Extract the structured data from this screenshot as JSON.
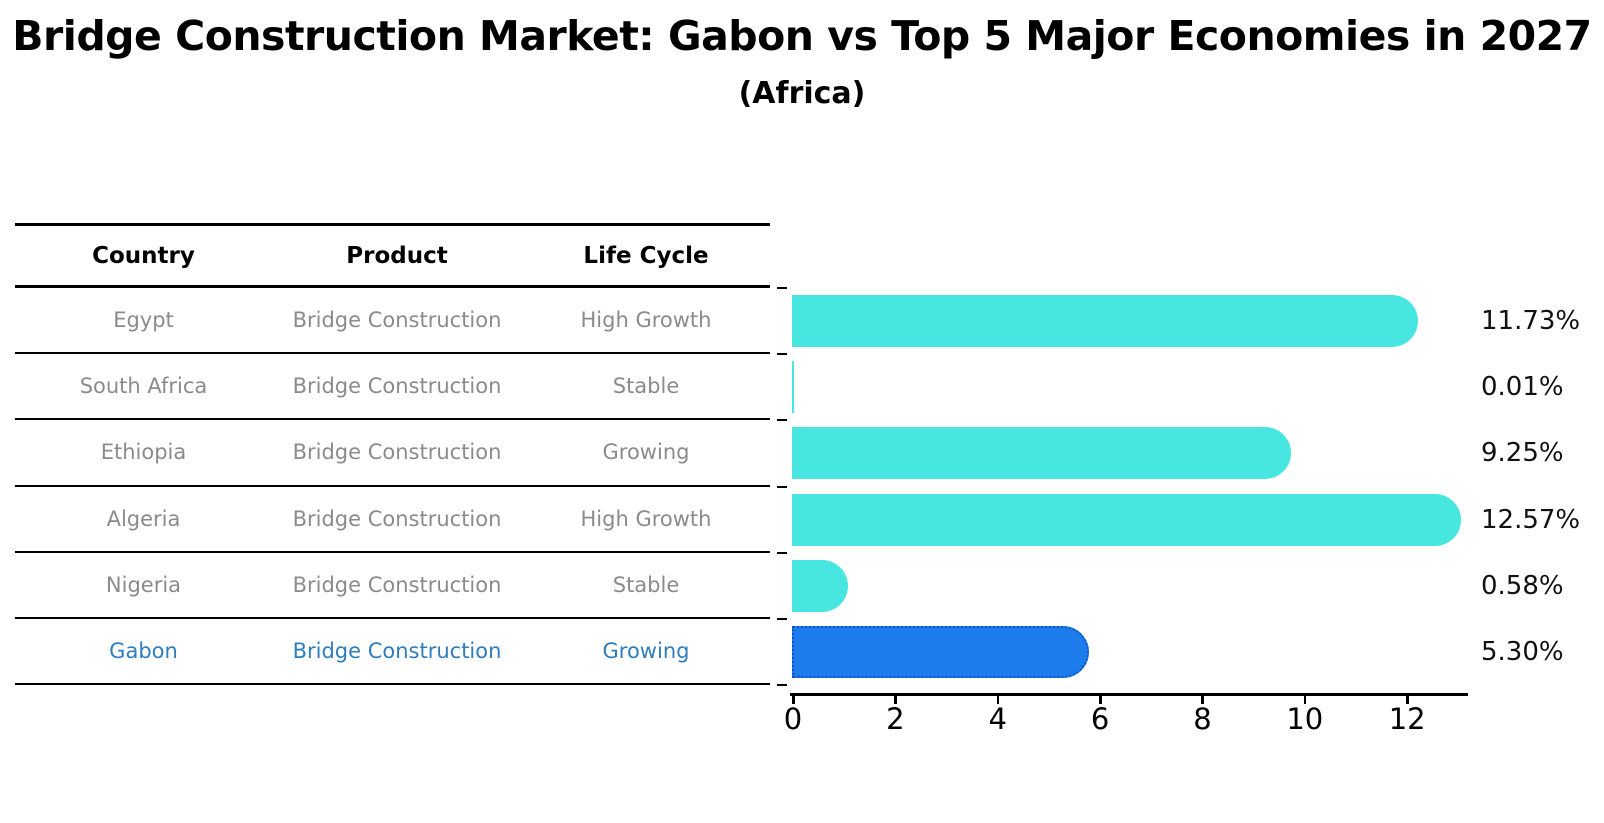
{
  "title": "Bridge Construction Market: Gabon vs Top 5 Major Economies in 2027",
  "subtitle": "(Africa)",
  "table": {
    "headers": [
      "Country",
      "Product",
      "Life Cycle"
    ],
    "rows": [
      {
        "country": "Egypt",
        "product": "Bridge Construction",
        "life_cycle": "High Growth",
        "highlight": false
      },
      {
        "country": "South Africa",
        "product": "Bridge Construction",
        "life_cycle": "Stable",
        "highlight": false
      },
      {
        "country": "Ethiopia",
        "product": "Bridge Construction",
        "life_cycle": "Growing",
        "highlight": false
      },
      {
        "country": "Algeria",
        "product": "Bridge Construction",
        "life_cycle": "High Growth",
        "highlight": false
      },
      {
        "country": "Nigeria",
        "product": "Bridge Construction",
        "life_cycle": "Stable",
        "highlight": false
      },
      {
        "country": "Gabon",
        "product": "Bridge Construction",
        "life_cycle": "Growing",
        "highlight": true
      }
    ]
  },
  "chart_data": {
    "type": "bar",
    "orientation": "horizontal",
    "title": "Bridge Construction Market: Gabon vs Top 5 Major Economies in 2027 (Africa)",
    "categories": [
      "Egypt",
      "South Africa",
      "Ethiopia",
      "Algeria",
      "Nigeria",
      "Gabon"
    ],
    "values": [
      11.73,
      0.01,
      9.25,
      12.57,
      0.58,
      5.3
    ],
    "value_labels": [
      "11.73%",
      "0.01%",
      "9.25%",
      "12.57%",
      "0.58%",
      "5.30%"
    ],
    "xlabel": "",
    "ylabel": "",
    "xlim": [
      0,
      13.15
    ],
    "xticks": [
      0,
      2,
      4,
      6,
      8,
      10,
      12
    ],
    "grid": false,
    "legend_position": "none",
    "highlight_index": 5,
    "bar_color": "#47E6E0",
    "highlight_bar_color": "#1C7CEC",
    "highlight_border_color": "#0E56C8"
  },
  "colors": {
    "background": "#FFFFFF",
    "header_text": "#000000",
    "row_text": "#8B8B8B",
    "highlight_text": "#2E7EBD",
    "axis": "#000000",
    "value_label_text": "#111111"
  }
}
